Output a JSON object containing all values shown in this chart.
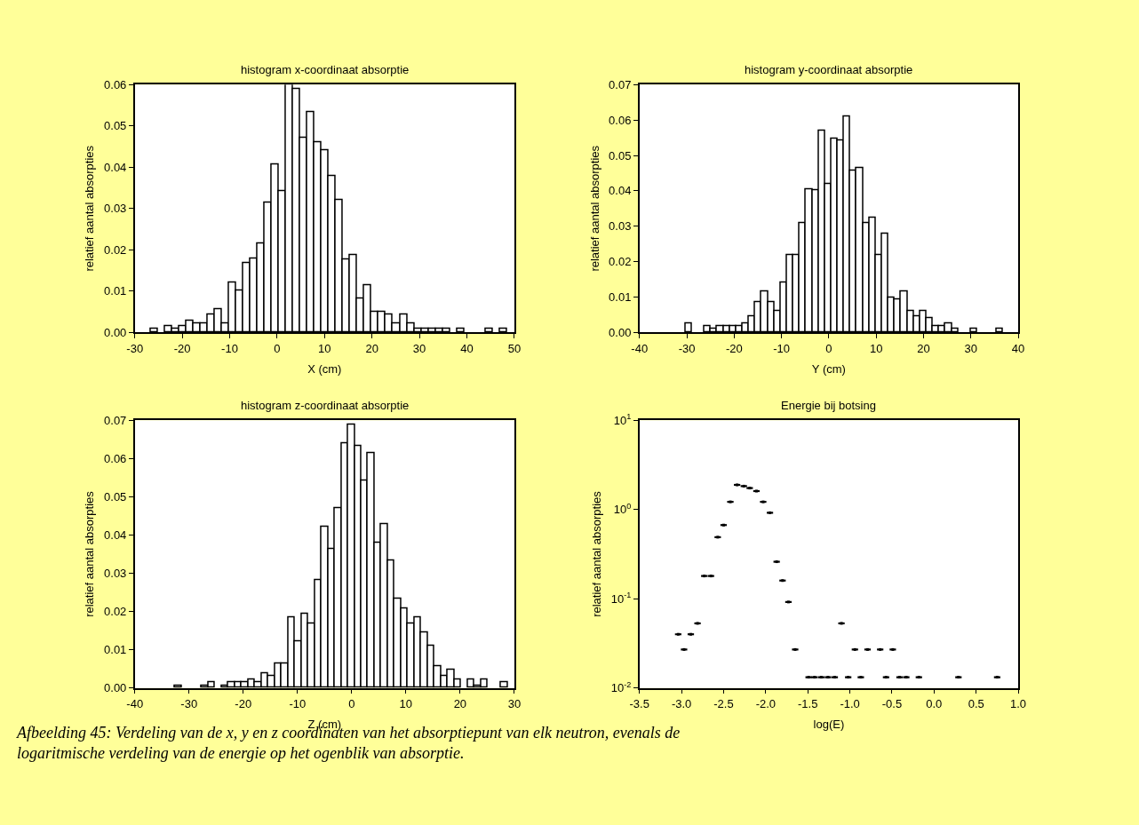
{
  "chart_data": [
    {
      "type": "histogram",
      "title": "histogram x-coordinaat absorptie",
      "xlabel": "X (cm)",
      "ylabel": "relatief aantal absorpties",
      "color": "#ffffff",
      "bins": [
        -26.6,
        -25.1,
        -23.6,
        -22.1,
        -20.6,
        -19.1,
        -17.6,
        -16.1,
        -14.6,
        -13.1,
        -11.6,
        -10.1,
        -8.6,
        -7.1,
        -5.6,
        -4.1,
        -2.6,
        -1.1,
        0.4,
        1.9,
        3.4,
        4.9,
        6.4,
        7.9,
        9.4,
        10.9,
        12.4,
        13.9,
        15.4,
        16.9,
        18.4,
        19.9,
        21.4,
        22.9,
        24.4,
        25.9,
        27.4,
        28.9,
        30.4,
        31.9,
        33.4,
        34.9,
        36.4,
        37.9,
        39.4,
        40.9,
        42.4,
        43.9,
        45.4,
        46.9,
        48.4
      ],
      "values": [
        0.0008,
        0,
        0.0014,
        0.0008,
        0.0014,
        0.0028,
        0.0021,
        0.0021,
        0.0043,
        0.0055,
        0.0021,
        0.0121,
        0.0101,
        0.0168,
        0.0179,
        0.0214,
        0.0313,
        0.0406,
        0.0341,
        0.06,
        0.059,
        0.0471,
        0.0533,
        0.0461,
        0.044,
        0.0379,
        0.032,
        0.0176,
        0.0186,
        0.0081,
        0.0114,
        0.0049,
        0.0049,
        0.0043,
        0.0021,
        0.0043,
        0.0021,
        0.0008,
        0.0008,
        0.0008,
        0.0008,
        0.0008,
        0,
        0.0008,
        0,
        0,
        0,
        0.0008,
        0,
        0.0008
      ],
      "xlim": [
        -30,
        50
      ],
      "xticks": [
        -30,
        -20,
        -10,
        0,
        10,
        20,
        30,
        40,
        50
      ],
      "ylim": [
        0,
        0.06
      ],
      "yticks": [
        {
          "value": 0,
          "label": "0.00"
        },
        0.01,
        0.02,
        0.03,
        0.04,
        0.05,
        0.06
      ]
    },
    {
      "type": "histogram",
      "title": "histogram y-coordinaat absorptie",
      "xlabel": "Y (cm)",
      "ylabel": "relatief aantal absorpties",
      "color": "#ffffff",
      "bins": [
        -30.3,
        -28.96,
        -27.62,
        -26.28,
        -24.94,
        -23.6,
        -22.26,
        -20.92,
        -19.58,
        -18.24,
        -16.9,
        -15.56,
        -14.22,
        -12.88,
        -11.54,
        -10.2,
        -8.86,
        -7.52,
        -6.18,
        -4.84,
        -3.5,
        -2.16,
        -0.82,
        0.52,
        1.86,
        3.2,
        4.54,
        5.88,
        7.22,
        8.56,
        9.9,
        11.24,
        12.58,
        13.92,
        15.26,
        16.6,
        17.94,
        19.28,
        20.62,
        21.96,
        23.3,
        24.64,
        25.98,
        27.32,
        28.66,
        30.0,
        31.34,
        32.68,
        34.02,
        35.36,
        36.7
      ],
      "values": [
        0.0025,
        0,
        0,
        0.0017,
        0.0009,
        0.0017,
        0.0017,
        0.0017,
        0.0017,
        0.0025,
        0.0045,
        0.0086,
        0.0114,
        0.0086,
        0.0061,
        0.0139,
        0.0218,
        0.0218,
        0.0308,
        0.0404,
        0.04,
        0.0569,
        0.042,
        0.0548,
        0.0542,
        0.0609,
        0.0457,
        0.0464,
        0.0308,
        0.0323,
        0.0218,
        0.0279,
        0.0098,
        0.0093,
        0.0114,
        0.0061,
        0.0045,
        0.0061,
        0.004,
        0.0017,
        0.0017,
        0.0025,
        0.0009,
        0,
        0,
        0.0009,
        0,
        0,
        0,
        0.0009
      ],
      "xlim": [
        -40,
        40
      ],
      "xticks": [
        -40,
        -30,
        -20,
        -10,
        0,
        10,
        20,
        30,
        40
      ],
      "ylim": [
        0,
        0.07
      ],
      "yticks": [
        {
          "value": 0,
          "label": "0.00"
        },
        0.01,
        0.02,
        0.03,
        0.04,
        0.05,
        0.06,
        0.07
      ]
    },
    {
      "type": "histogram",
      "title": "histogram z-coordinaat absorptie",
      "xlabel": "Z (cm)",
      "ylabel": "relatief aantal absorpties",
      "color": "#ffffff",
      "bins": [
        -32.6,
        -31.37,
        -30.14,
        -28.92,
        -27.69,
        -26.46,
        -25.23,
        -24.0,
        -22.78,
        -21.55,
        -20.32,
        -19.09,
        -17.86,
        -16.64,
        -15.41,
        -14.18,
        -12.95,
        -11.72,
        -10.5,
        -9.27,
        -8.04,
        -6.81,
        -5.58,
        -4.36,
        -3.13,
        -1.9,
        -0.67,
        0.56,
        1.78,
        3.01,
        4.24,
        5.47,
        6.7,
        7.92,
        9.15,
        10.38,
        11.61,
        12.84,
        14.06,
        15.29,
        16.52,
        17.75,
        18.98,
        20.2,
        21.43,
        22.66,
        23.89,
        25.12,
        26.34,
        27.57,
        28.8
      ],
      "values": [
        0.0006,
        0,
        0,
        0,
        0.0006,
        0.0015,
        0,
        0.0006,
        0.0015,
        0.0015,
        0.0015,
        0.0023,
        0.0015,
        0.0039,
        0.0031,
        0.0063,
        0.0063,
        0.0185,
        0.0121,
        0.0193,
        0.0169,
        0.0282,
        0.0421,
        0.0364,
        0.0469,
        0.064,
        0.0688,
        0.0632,
        0.0542,
        0.0615,
        0.038,
        0.0428,
        0.0332,
        0.0234,
        0.0208,
        0.0169,
        0.0185,
        0.0145,
        0.0111,
        0.0056,
        0.0031,
        0.0047,
        0.0023,
        0,
        0.0023,
        0.0006,
        0.0023,
        0,
        0,
        0.0015
      ],
      "xlim": [
        -40,
        30
      ],
      "xticks": [
        -40,
        -30,
        -20,
        -10,
        0,
        10,
        20,
        30
      ],
      "ylim": [
        0,
        0.07
      ],
      "yticks": [
        {
          "value": 0,
          "label": "0.00"
        },
        0.01,
        0.02,
        0.03,
        0.04,
        0.05,
        0.06,
        0.07
      ],
      "annotations": [
        "Afbeelding 45: Verdeling van de x, y en z coordinaten van het absorptiepunt van elk neutron, evenals de logaritmische verdeling van de energie op het ogenblik van absorptie."
      ]
    },
    {
      "type": "scatter",
      "title": "Energie bij botsing",
      "xlabel": "log(E)",
      "ylabel": "relatief aantal absorpties",
      "color": "#000000",
      "marker": "square",
      "log": "y",
      "xerrors": [
        0.038,
        0.038,
        0.038,
        0.038,
        0.038,
        0.038,
        0.038,
        0.038,
        0.038,
        0.038,
        0.038,
        0.038,
        0.038,
        0.038,
        0.038,
        0.038,
        0.038,
        0.038,
        0.038,
        0.038,
        0.038,
        0.038,
        0.038,
        0.038,
        0.038,
        0.038,
        0.038,
        0.038,
        0.038,
        0.038,
        0.038,
        0.038,
        0.038,
        0.038,
        0.038,
        0.038,
        0.038
      ],
      "x": [
        -3.04,
        -2.97,
        -2.89,
        -2.81,
        -2.73,
        -2.65,
        -2.57,
        -2.5,
        -2.42,
        -2.34,
        -2.26,
        -2.19,
        -2.11,
        -2.03,
        -1.95,
        -1.87,
        -1.8,
        -1.73,
        -1.65,
        -1.49,
        -1.42,
        -1.34,
        -1.26,
        -1.18,
        -1.1,
        -1.02,
        -0.94,
        -0.87,
        -0.79,
        -0.64,
        -0.57,
        -0.49,
        -0.41,
        -0.33,
        -0.18,
        0.29,
        0.75
      ],
      "values": [
        0.04,
        0.027,
        0.04,
        0.053,
        0.18,
        0.18,
        0.49,
        0.67,
        1.22,
        1.89,
        1.83,
        1.74,
        1.61,
        1.22,
        0.92,
        0.26,
        0.16,
        0.092,
        0.027,
        0.0132,
        0.0132,
        0.0132,
        0.0132,
        0.0132,
        0.053,
        0.0132,
        0.027,
        0.0132,
        0.027,
        0.027,
        0.0132,
        0.027,
        0.0132,
        0.0132,
        0.0132,
        0.0132,
        0.0132
      ],
      "xlim": [
        -3.5,
        1.0
      ],
      "xticks": [
        -3.5,
        {
          "value": -3,
          "label": "-3.0"
        },
        -2.5,
        {
          "value": -2,
          "label": "-2.0"
        },
        -1.5,
        {
          "value": -1,
          "label": "-1.0"
        },
        -0.5,
        {
          "value": 0,
          "label": "0.0"
        },
        0.5,
        {
          "value": 1,
          "label": "1.0"
        }
      ],
      "ylim": [
        0.01,
        10
      ],
      "yticks": [
        {
          "value": 0.01,
          "label": "10$^{-2}$"
        },
        {
          "value": 0.1,
          "label": "10$^{-1}$"
        },
        {
          "value": 1,
          "label": "10$^{0}$"
        },
        {
          "value": 10,
          "label": "10$^{1}$"
        }
      ]
    }
  ]
}
